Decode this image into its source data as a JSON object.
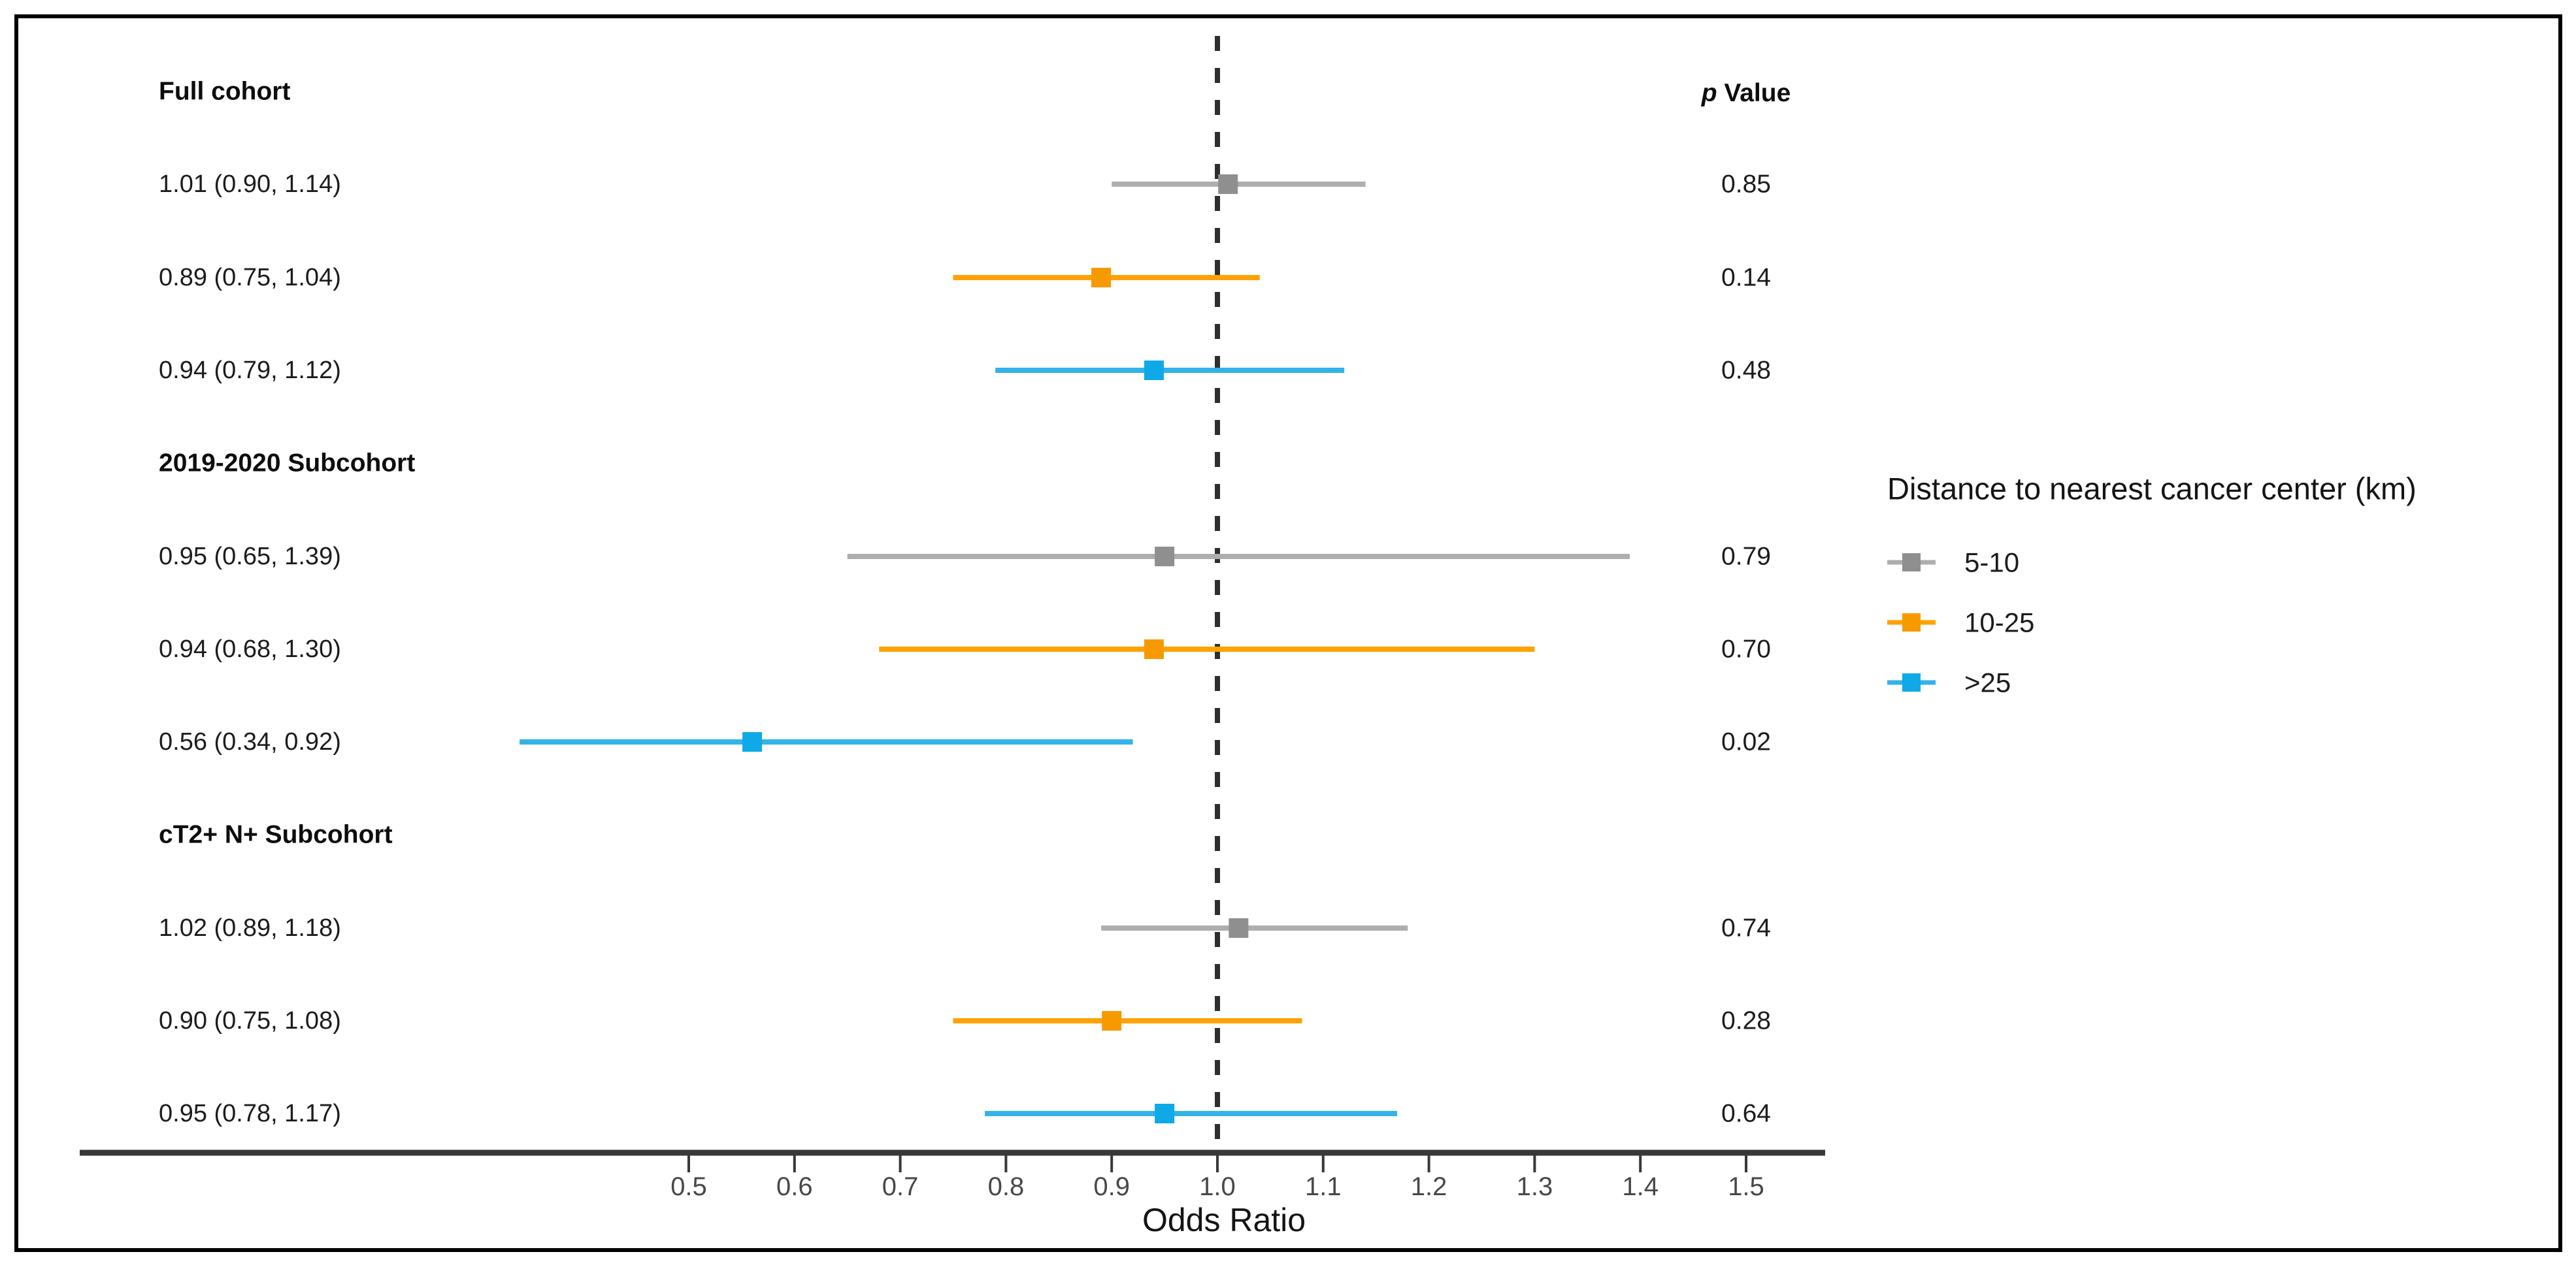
{
  "figure": {
    "background_color": "#ffffff",
    "border_color": "#000000"
  },
  "chart_data": {
    "type": "forest",
    "xlabel": "Odds Ratio",
    "x_ticks": [
      "0.5",
      "0.6",
      "0.7",
      "0.8",
      "0.9",
      "1.0",
      "1.1",
      "1.2",
      "1.3",
      "1.4",
      "1.5"
    ],
    "x_tick_values": [
      0.5,
      0.6,
      0.7,
      0.8,
      0.9,
      1.0,
      1.1,
      1.2,
      1.3,
      1.4,
      1.5
    ],
    "x_range": [
      0.42,
      1.57
    ],
    "reference_line": 1.0,
    "reference_line_color": "#2e2e2e",
    "axis_color": "#383838",
    "p_header": {
      "italic": "p",
      "rest": " Value"
    },
    "series": [
      {
        "name": "5-10",
        "line_color": "#aeaeae",
        "marker_color": "#8f8f8f"
      },
      {
        "name": "10-25",
        "line_color": "#fea203",
        "marker_color": "#f79a00"
      },
      {
        "name": ">25",
        "line_color": "#33b3e9",
        "marker_color": "#0ea9e6"
      }
    ],
    "legend": {
      "title": "Distance to nearest cancer center (km)",
      "position": "right"
    },
    "groups": [
      {
        "header": "Full cohort",
        "rows": [
          {
            "label": "1.01 (0.90, 1.14)",
            "or": 1.01,
            "ci_low": 0.9,
            "ci_high": 1.14,
            "p": "0.85",
            "series": 0
          },
          {
            "label": "0.89 (0.75, 1.04)",
            "or": 0.89,
            "ci_low": 0.75,
            "ci_high": 1.04,
            "p": "0.14",
            "series": 1
          },
          {
            "label": "0.94 (0.79, 1.12)",
            "or": 0.94,
            "ci_low": 0.79,
            "ci_high": 1.12,
            "p": "0.48",
            "series": 2
          }
        ]
      },
      {
        "header": "2019-2020 Subcohort",
        "rows": [
          {
            "label": "0.95 (0.65, 1.39)",
            "or": 0.95,
            "ci_low": 0.65,
            "ci_high": 1.39,
            "p": "0.79",
            "series": 0
          },
          {
            "label": "0.94 (0.68, 1.30)",
            "or": 0.94,
            "ci_low": 0.68,
            "ci_high": 1.3,
            "p": "0.70",
            "series": 1
          },
          {
            "label": "0.56 (0.34, 0.92)",
            "or": 0.56,
            "ci_low": 0.34,
            "ci_high": 0.92,
            "p": "0.02",
            "series": 2
          }
        ]
      },
      {
        "header": "cT2+ N+ Subcohort",
        "rows": [
          {
            "label": "1.02 (0.89, 1.18)",
            "or": 1.02,
            "ci_low": 0.89,
            "ci_high": 1.18,
            "p": "0.74",
            "series": 0
          },
          {
            "label": "0.90 (0.75, 1.08)",
            "or": 0.9,
            "ci_low": 0.75,
            "ci_high": 1.08,
            "p": "0.28",
            "series": 1
          },
          {
            "label": "0.95 (0.78, 1.17)",
            "or": 0.95,
            "ci_low": 0.78,
            "ci_high": 1.17,
            "p": "0.64",
            "series": 2
          }
        ]
      }
    ]
  }
}
